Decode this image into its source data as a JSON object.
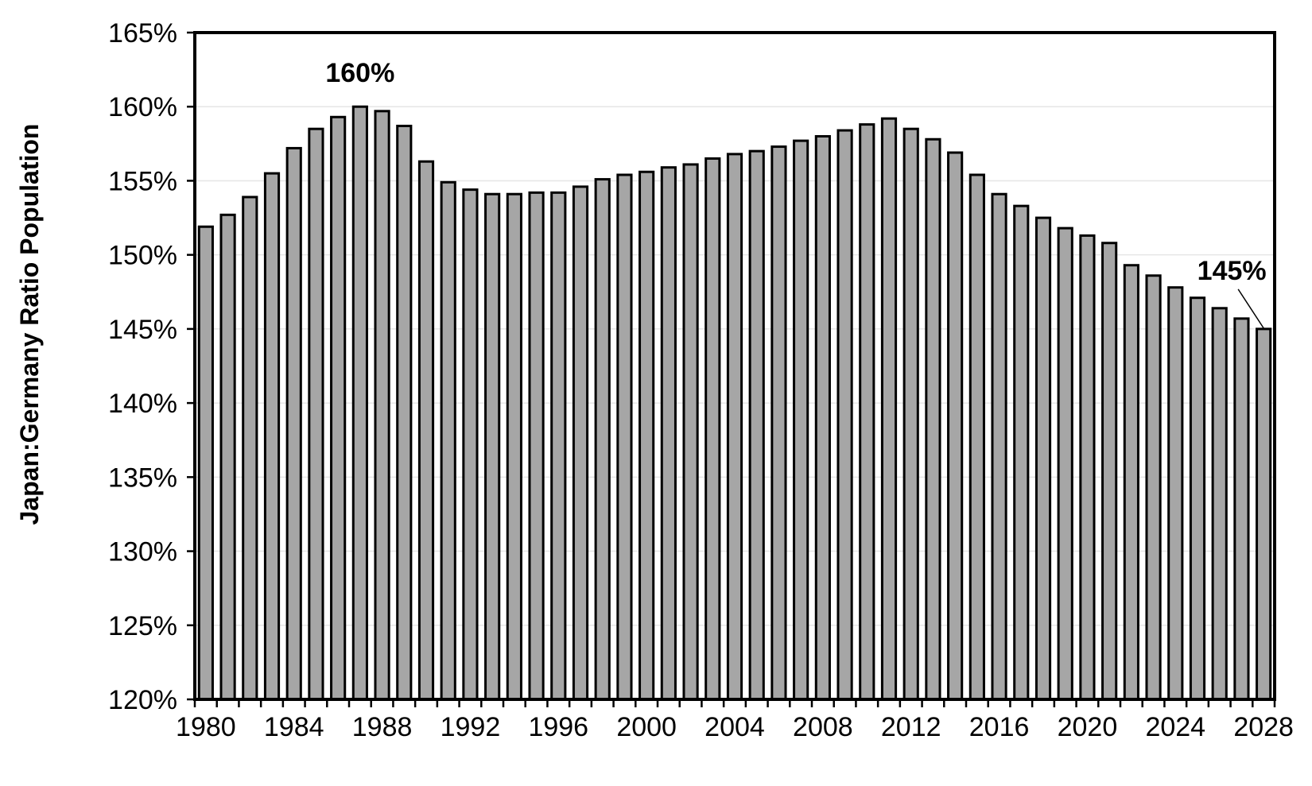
{
  "chart_data": {
    "type": "bar",
    "title": "",
    "xlabel": "",
    "ylabel": "Japan:Germany Ratio Population",
    "ylim": [
      120,
      165
    ],
    "y_tick_values": [
      120,
      125,
      130,
      135,
      140,
      145,
      150,
      155,
      160,
      165
    ],
    "y_tick_labels": [
      "120%",
      "125%",
      "130%",
      "135%",
      "140%",
      "145%",
      "150%",
      "155%",
      "160%",
      "165%"
    ],
    "x_tick_labels": [
      "1980",
      "1984",
      "1988",
      "1992",
      "1996",
      "2000",
      "2004",
      "2008",
      "2012",
      "2016",
      "2020",
      "2024",
      "2028"
    ],
    "categories": [
      1980,
      1981,
      1982,
      1983,
      1984,
      1985,
      1986,
      1987,
      1988,
      1989,
      1990,
      1991,
      1992,
      1993,
      1994,
      1995,
      1996,
      1997,
      1998,
      1999,
      2000,
      2001,
      2002,
      2003,
      2004,
      2005,
      2006,
      2007,
      2008,
      2009,
      2010,
      2011,
      2012,
      2013,
      2014,
      2015,
      2016,
      2017,
      2018,
      2019,
      2020,
      2021,
      2022,
      2023,
      2024,
      2025,
      2026,
      2027,
      2028
    ],
    "values": [
      151.9,
      152.7,
      153.9,
      155.5,
      157.2,
      158.5,
      159.3,
      160.0,
      159.7,
      158.7,
      156.3,
      154.9,
      154.4,
      154.1,
      154.1,
      154.2,
      154.2,
      154.6,
      155.1,
      155.4,
      155.6,
      155.9,
      156.1,
      156.5,
      156.8,
      157.0,
      157.3,
      157.7,
      158.0,
      158.4,
      158.8,
      159.2,
      158.5,
      157.8,
      156.9,
      155.4,
      154.1,
      153.3,
      152.5,
      151.8,
      151.3,
      150.8,
      149.3,
      148.6,
      147.8,
      147.1,
      146.4,
      145.7,
      145.0
    ],
    "grid": true,
    "bar_color": "#a6a6a6",
    "bar_edge_color": "#000000",
    "grid_color": "#e6e6e6",
    "annotations": [
      {
        "text": "160%",
        "category": 1987,
        "value": 160.0
      },
      {
        "text": "145%",
        "category": 2028,
        "value": 145.0
      }
    ]
  }
}
